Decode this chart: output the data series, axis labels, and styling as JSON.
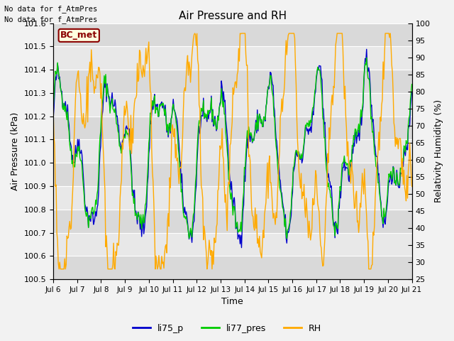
{
  "title": "Air Pressure and RH",
  "xlabel": "Time",
  "ylabel_left": "Air Pressure (kPa)",
  "ylabel_right": "Relativity Humidity (%)",
  "ylim_left": [
    100.5,
    101.6
  ],
  "ylim_right": [
    25,
    100
  ],
  "yticks_left": [
    100.5,
    100.6,
    100.7,
    100.8,
    100.9,
    101.0,
    101.1,
    101.2,
    101.3,
    101.4,
    101.5,
    101.6
  ],
  "yticks_right": [
    25,
    30,
    35,
    40,
    45,
    50,
    55,
    60,
    65,
    70,
    75,
    80,
    85,
    90,
    95,
    100
  ],
  "note1": "No data for f_AtmPres",
  "note2": "No data for f_AtmPres",
  "legend_label": "BC_met",
  "color_li75": "#0000cc",
  "color_li77": "#00cc00",
  "color_rh": "#ffaa00",
  "fig_bg_color": "#f2f2f2",
  "plot_bg_light": "#e8e8e8",
  "plot_bg_dark": "#d0d0d0",
  "n_points": 500
}
